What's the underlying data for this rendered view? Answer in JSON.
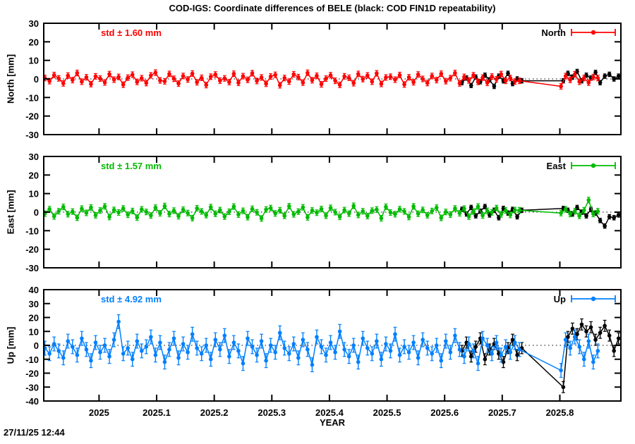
{
  "timestamp": "27/11/25 12:44",
  "chart": {
    "title": "COD-IGS: Coordinate differences of BELE (black: COD FIN1D repeatability)",
    "xlabel": "YEAR",
    "xlim": [
      2024.904,
      2025.906
    ],
    "x_ticks": [
      2025.0,
      2025.1,
      2025.2,
      2025.3,
      2025.4,
      2025.5,
      2025.6,
      2025.7,
      2025.8
    ],
    "x_tick_labels": [
      "2025",
      "2025.1",
      "2025.2",
      "2025.3",
      "2025.4",
      "2025.5",
      "2025.6",
      "2025.7",
      "2025.8"
    ],
    "grid": false,
    "legend_position": "top-right-inside"
  },
  "chart_data": {
    "type": "line",
    "panels": [
      {
        "name": "north",
        "ylabel": "North [mm]",
        "ylim": [
          -30,
          30
        ],
        "y_ticks": [
          30,
          20,
          10,
          0,
          -10,
          -20,
          -30
        ],
        "std_label": "std ± 1.60 mm",
        "legend": "North",
        "color": "#ff0000",
        "series": [
          {
            "id": "fin1d-repeatability",
            "color": "#000000",
            "x0": 2025.63,
            "dx": 0.008,
            "err": 1.2,
            "y": [
              -2.0,
              0.5,
              -3.5,
              1.0,
              -1.5,
              2.0,
              -0.5,
              -4.0,
              1.5,
              -1.0,
              3.0,
              -2.5,
              0.0,
              -1.0,
              null,
              null,
              null,
              null,
              null,
              null,
              null,
              null,
              -1.0,
              3.0,
              1.0,
              4.0,
              -1.0,
              2.0,
              0.5,
              3.5,
              -2.0,
              1.5,
              2.5,
              0.0,
              1.5
            ]
          },
          {
            "id": "cod-igs-difference",
            "color": "#ff0000",
            "x0": 2024.906,
            "dx": 0.008,
            "err": 1.5,
            "y": [
              0.5,
              -1.2,
              2.1,
              0.3,
              -2.4,
              1.8,
              -0.6,
              3.2,
              -1.5,
              0.9,
              -2.8,
              1.4,
              0.2,
              -1.9,
              2.6,
              -0.4,
              1.1,
              -3.1,
              0.7,
              2.3,
              -1.6,
              0.4,
              -2.2,
              1.9,
              3.4,
              -0.8,
              -1.3,
              2.7,
              0.1,
              -2.5,
              1.6,
              -0.3,
              2.9,
              -1.8,
              0.6,
              -3.3,
              1.2,
              2.4,
              -0.9,
              0.3,
              -1.7,
              2.8,
              -2.1,
              1.5,
              -0.5,
              3.1,
              -1.1,
              0.8,
              -2.6,
              1.3,
              2.2,
              -3.4,
              0.5,
              -1.4,
              2.5,
              1.0,
              -2.0,
              3.3,
              -0.7,
              1.7,
              -2.9,
              0.2,
              2.0,
              -1.0,
              -3.2,
              1.4,
              0.6,
              -2.3,
              2.7,
              -0.1,
              1.9,
              -1.5,
              3.0,
              -2.7,
              0.8,
              1.2,
              -0.4,
              2.1,
              -3.0,
              0.9,
              -1.8,
              2.4,
              0.0,
              -2.2,
              1.6,
              -0.6,
              2.8,
              -1.2,
              0.4,
              3.2,
              -2.4,
              1.1,
              -0.8,
              2.0,
              -1.6,
              0.7,
              -2.1,
              1.3,
              -0.2,
              2.6,
              -1.0,
              0.5,
              -1.4,
              -1.0,
              null,
              null,
              null,
              null,
              null,
              null,
              null,
              null,
              -4.0,
              1.5,
              -0.5,
              2.5,
              -1.5,
              0.5,
              -2.0,
              1.0,
              0.5
            ]
          }
        ]
      },
      {
        "name": "east",
        "ylabel": "East [mm]",
        "ylim": [
          -30,
          30
        ],
        "y_ticks": [
          30,
          20,
          10,
          0,
          -10,
          -20,
          -30
        ],
        "std_label": "std ± 1.57 mm",
        "legend": "East",
        "color": "#00bb00",
        "series": [
          {
            "id": "fin1d-repeatability",
            "color": "#000000",
            "x0": 2025.63,
            "dx": 0.008,
            "err": 1.2,
            "y": [
              1.5,
              -1.0,
              2.5,
              -2.0,
              0.5,
              3.0,
              -1.5,
              1.0,
              -3.0,
              2.0,
              -0.5,
              1.5,
              -2.5,
              1.0,
              null,
              null,
              null,
              null,
              null,
              null,
              null,
              null,
              2.0,
              1.0,
              -1.0,
              2.5,
              0.0,
              -2.0,
              1.5,
              -0.5,
              -4.5,
              -7.5,
              -2.5,
              -3.0,
              -1.5
            ]
          },
          {
            "id": "cod-igs-difference",
            "color": "#00bb00",
            "x0": 2024.906,
            "dx": 0.008,
            "err": 1.5,
            "y": [
              -0.8,
              1.6,
              -2.3,
              0.5,
              2.8,
              -1.1,
              0.3,
              -3.0,
              1.9,
              -0.4,
              2.5,
              -1.7,
              0.9,
              3.1,
              -2.6,
              1.2,
              -0.2,
              2.0,
              -1.4,
              0.6,
              -2.9,
              1.5,
              0.1,
              -1.8,
              2.4,
              -0.6,
              3.3,
              -1.0,
              0.8,
              -2.2,
              1.3,
              -0.5,
              -3.2,
              2.1,
              0.4,
              -1.6,
              2.7,
              -0.9,
              1.1,
              -2.4,
              0.2,
              3.0,
              -1.3,
              0.7,
              -2.7,
              1.8,
              -0.1,
              -3.4,
              1.4,
              2.2,
              -0.7,
              1.0,
              -2.0,
              3.2,
              -1.2,
              0.3,
              2.6,
              -2.8,
              0.9,
              -0.3,
              1.7,
              -1.9,
              2.3,
              0.0,
              -2.5,
              1.1,
              -0.8,
              3.4,
              -1.5,
              0.5,
              -2.1,
              0.8,
              1.4,
              -3.3,
              2.9,
              -0.2,
              -1.1,
              1.6,
              0.4,
              -2.6,
              3.1,
              -0.9,
              1.2,
              -1.7,
              0.6,
              2.4,
              -3.1,
              0.1,
              -1.3,
              2.0,
              -0.6,
              1.9,
              -2.4,
              0.3,
              3.0,
              -1.8,
              0.7,
              -0.1,
              2.2,
              -1.2,
              0.9,
              -1.5,
              1.1,
              1.0,
              null,
              null,
              null,
              null,
              null,
              null,
              null,
              null,
              -0.5,
              1.5,
              -1.0,
              0.5,
              -2.0,
              1.0,
              6.5,
              -1.0,
              0.5
            ]
          }
        ]
      },
      {
        "name": "up",
        "ylabel": "Up [mm]",
        "ylim": [
          -40,
          40
        ],
        "y_ticks": [
          40,
          30,
          20,
          10,
          0,
          -10,
          -20,
          -30,
          -40
        ],
        "std_label": "std ± 4.92 mm",
        "legend": "Up",
        "color": "#0080ff",
        "series": [
          {
            "id": "fin1d-repeatability",
            "color": "#000000",
            "x0": 2025.63,
            "dx": 0.008,
            "err": 4,
            "y": [
              -4,
              2,
              -8,
              -1,
              5,
              -10,
              -3,
              1,
              -6,
              -12,
              -2,
              4,
              -7,
              -2,
              null,
              null,
              null,
              null,
              null,
              null,
              null,
              null,
              -30,
              6,
              12,
              8,
              15,
              10,
              13,
              4,
              9,
              14,
              7,
              -4,
              5
            ]
          },
          {
            "id": "cod-igs-difference",
            "color": "#0080ff",
            "x0": 2024.906,
            "dx": 0.008,
            "err": 5,
            "y": [
              -2,
              -6,
              1,
              -4,
              -9,
              3,
              -1,
              -7,
              5,
              -3,
              -11,
              2,
              -5,
              0,
              -8,
              4,
              17,
              -6,
              -2,
              -10,
              3,
              -4,
              -1,
              6,
              -7,
              2,
              -12,
              -3,
              5,
              -9,
              1,
              -5,
              8,
              -2,
              -6,
              0,
              -10,
              4,
              -3,
              7,
              -8,
              2,
              -4,
              -13,
              5,
              -1,
              -7,
              3,
              -11,
              0,
              -5,
              9,
              -2,
              -6,
              1,
              -9,
              4,
              -3,
              -14,
              6,
              -1,
              -7,
              2,
              -5,
              10,
              -3,
              -8,
              0,
              -12,
              5,
              -2,
              -6,
              3,
              -10,
              1,
              -4,
              8,
              -7,
              -1,
              -5,
              2,
              -9,
              4,
              -2,
              -6,
              0,
              -11,
              3,
              -5,
              7,
              -3,
              -8,
              1,
              -4,
              -13,
              5,
              0,
              -6,
              2,
              -7,
              -1,
              -5,
              2,
              -3,
              null,
              null,
              null,
              null,
              null,
              null,
              null,
              null,
              -18,
              4,
              -2,
              6,
              -1,
              -10,
              3,
              -12,
              -4
            ]
          }
        ]
      }
    ]
  }
}
